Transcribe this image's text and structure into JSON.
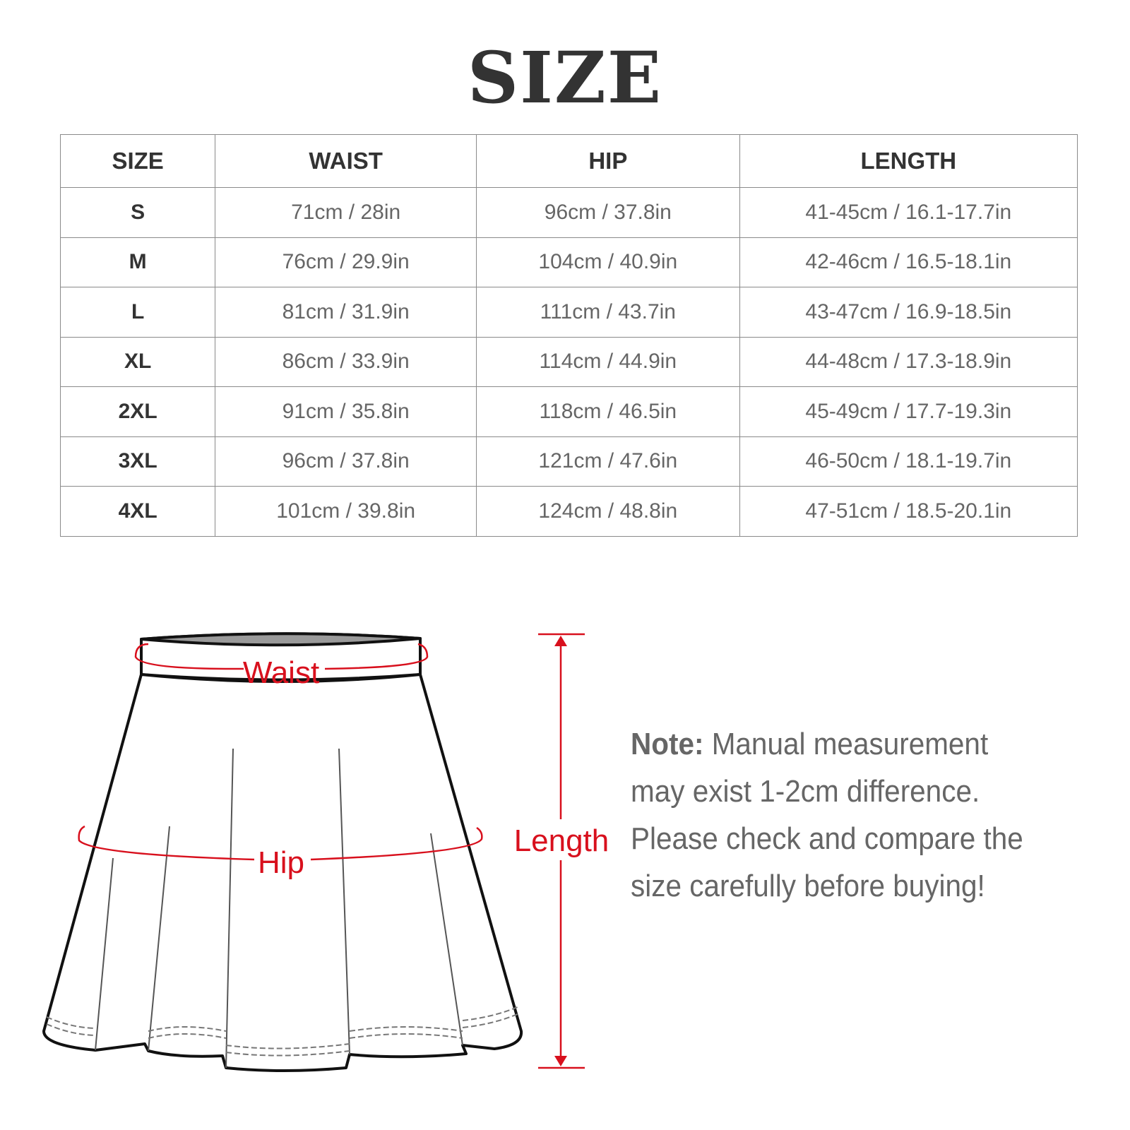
{
  "title": "SIZE",
  "table": {
    "headers": [
      "SIZE",
      "WAIST",
      "HIP",
      "LENGTH"
    ],
    "rows": [
      [
        "S",
        "71cm / 28in",
        "96cm / 37.8in",
        "41-45cm / 16.1-17.7in"
      ],
      [
        "M",
        "76cm / 29.9in",
        "104cm / 40.9in",
        "42-46cm / 16.5-18.1in"
      ],
      [
        "L",
        "81cm / 31.9in",
        "111cm / 43.7in",
        "43-47cm / 16.9-18.5in"
      ],
      [
        "XL",
        "86cm / 33.9in",
        "114cm / 44.9in",
        "44-48cm / 17.3-18.9in"
      ],
      [
        "2XL",
        "91cm / 35.8in",
        "118cm / 46.5in",
        "45-49cm / 17.7-19.3in"
      ],
      [
        "3XL",
        "96cm / 37.8in",
        "121cm / 47.6in",
        "46-50cm / 18.1-19.7in"
      ],
      [
        "4XL",
        "101cm / 39.8in",
        "124cm / 48.8in",
        "47-51cm / 18.5-20.1in"
      ]
    ]
  },
  "diagram": {
    "waist_label": "Waist",
    "hip_label": "Hip",
    "length_label": "Length",
    "accent_color": "#d8101d"
  },
  "note": {
    "label": "Note:",
    "text": "Manual measurement may exist 1-2cm difference. Please check and compare the size carefully before buying!"
  }
}
